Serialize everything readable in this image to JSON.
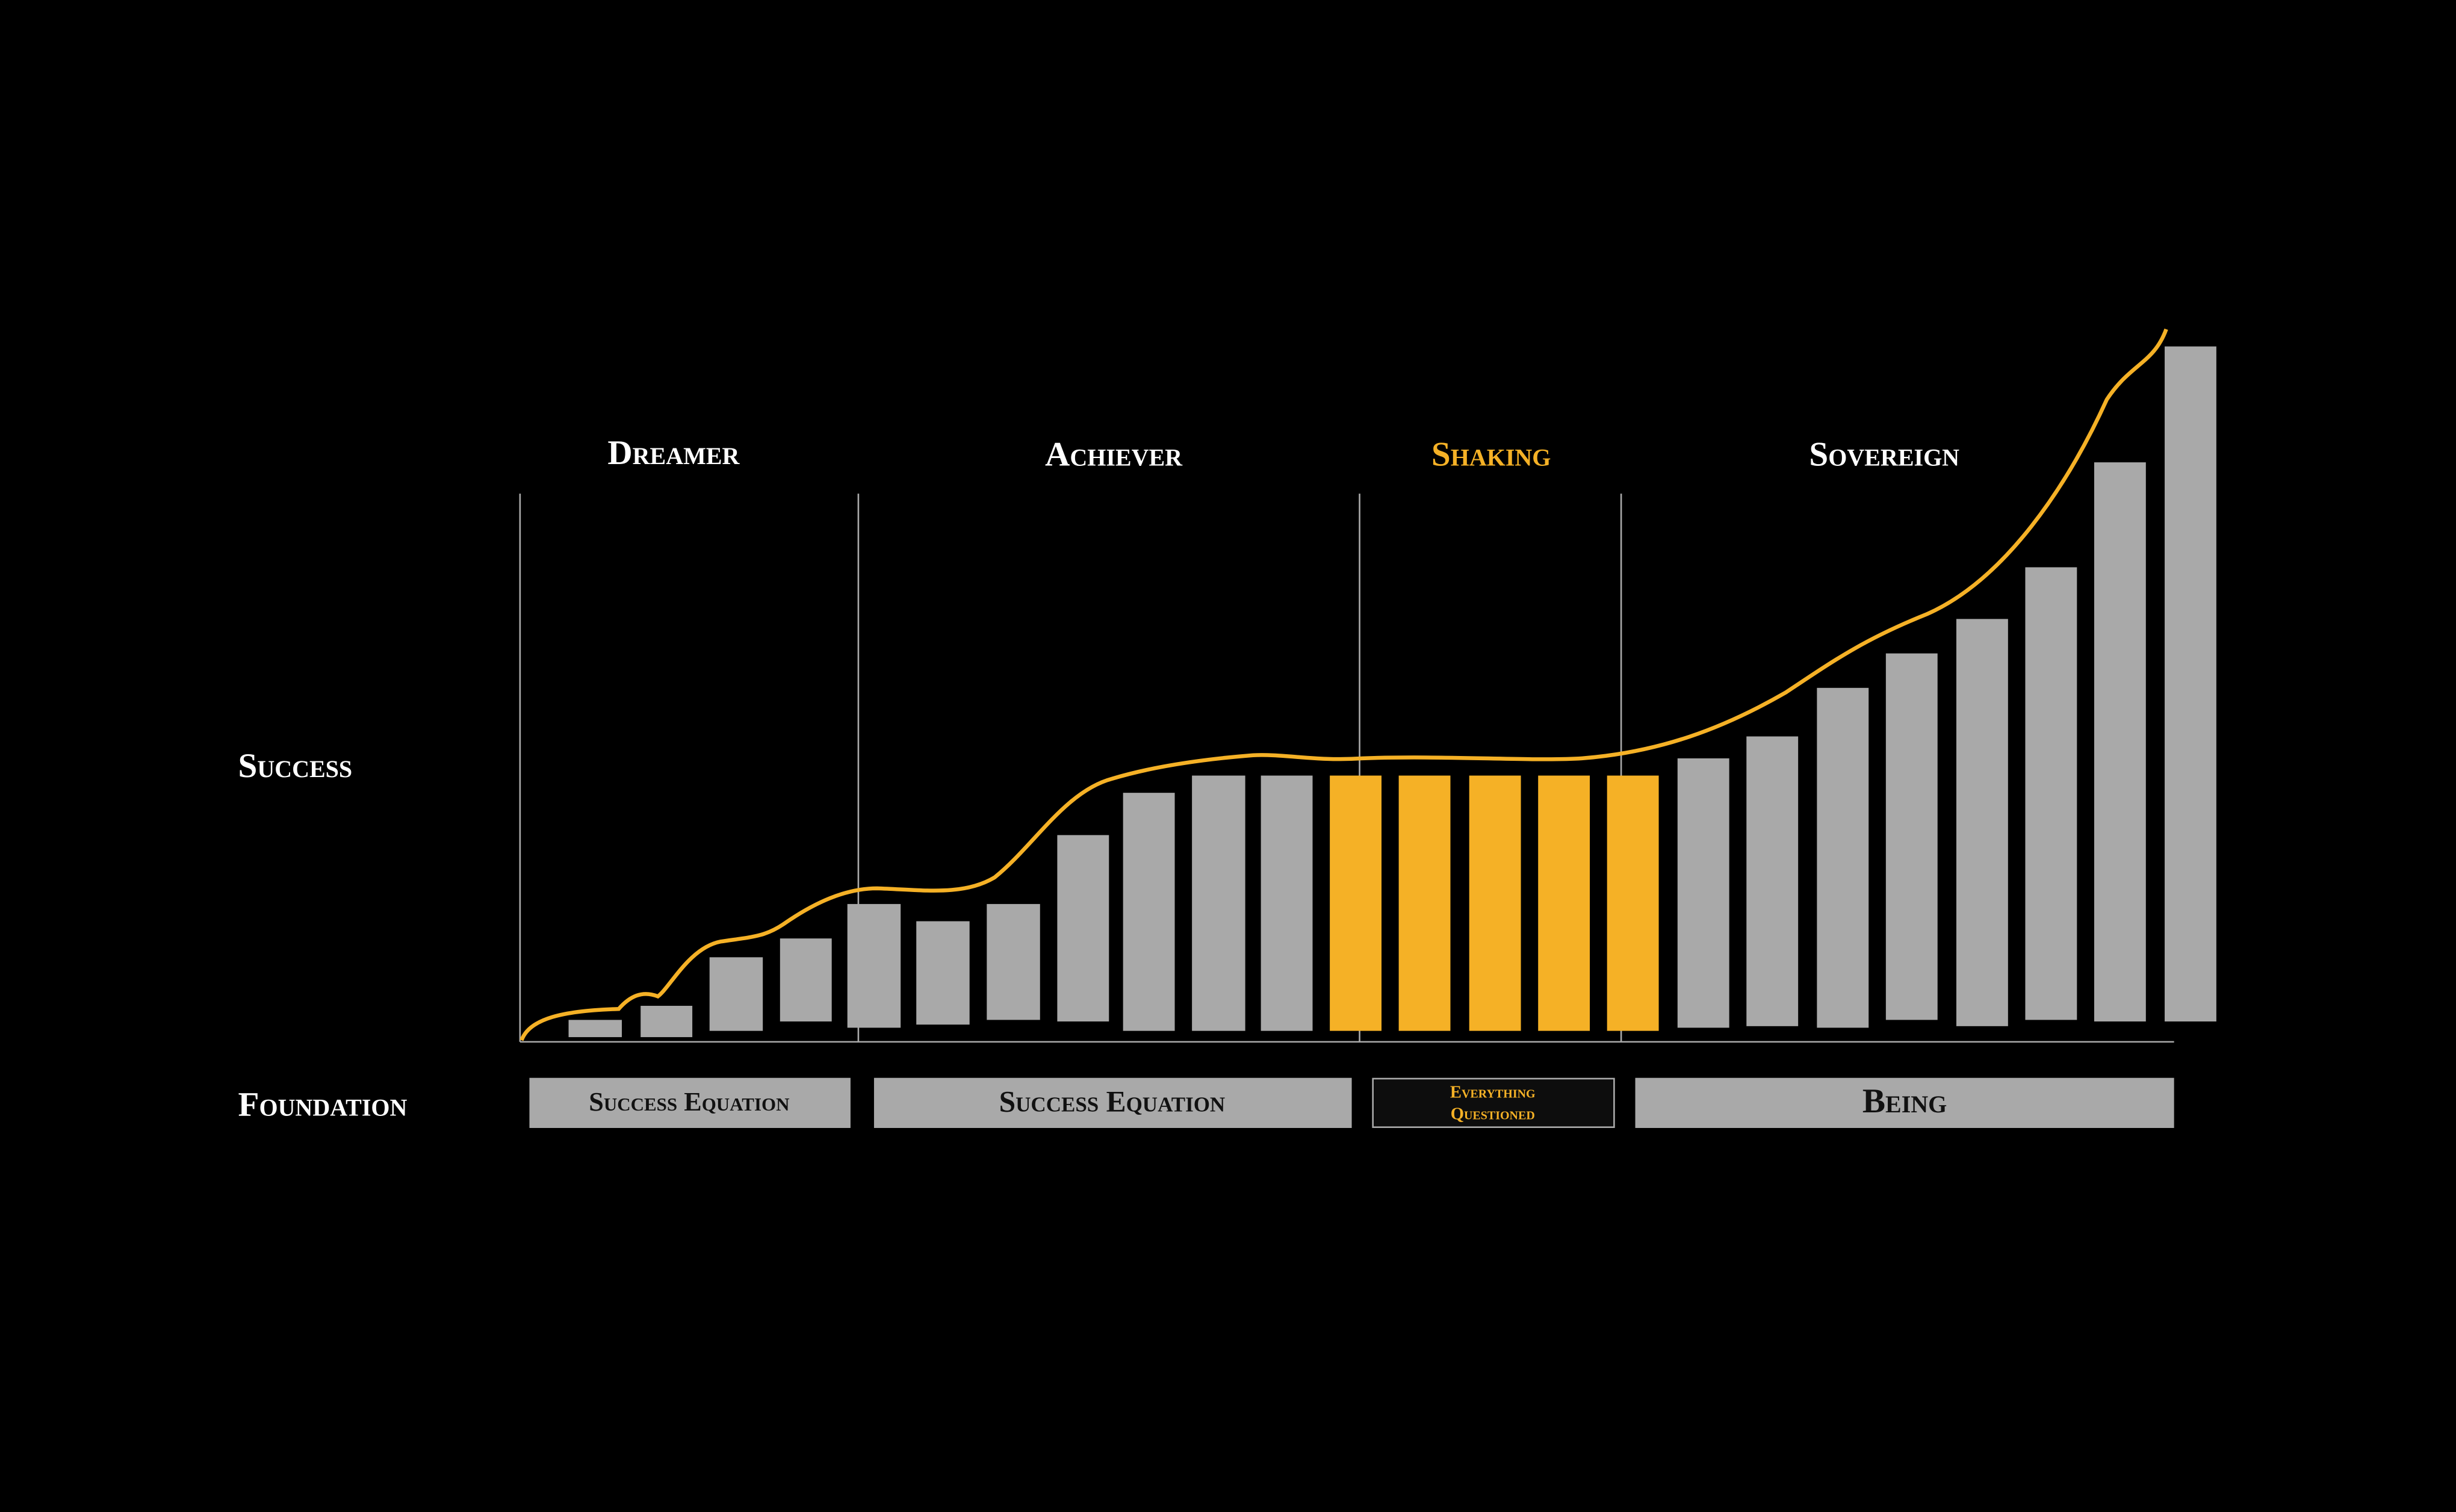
{
  "phases": [
    "Dreamer",
    "Achiever",
    "Shaking",
    "Sovereign"
  ],
  "axis_label": "Success",
  "foundation": {
    "label": "Foundation",
    "boxes": [
      "Success Equation",
      "Success Equation",
      [
        "Everything",
        "Questioned"
      ],
      "Being"
    ]
  }
}
